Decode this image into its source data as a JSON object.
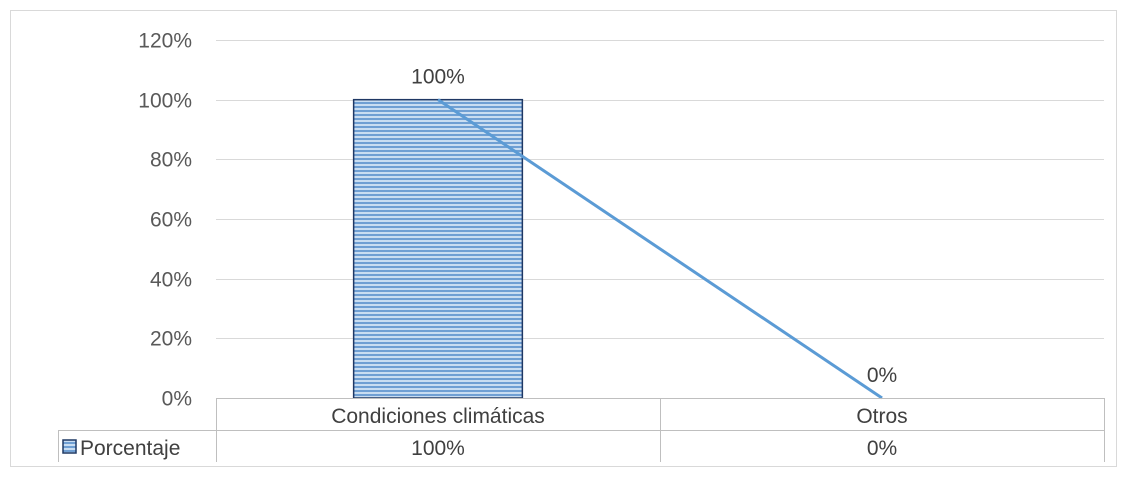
{
  "chart_data": {
    "type": "bar",
    "categories": [
      "Condiciones climáticas",
      "Otros"
    ],
    "series": [
      {
        "name": "Porcentaje",
        "values": [
          100,
          0
        ],
        "value_labels": [
          "100%",
          "0%"
        ],
        "color": "#9dc3e6",
        "border_color": "#1f3864"
      }
    ],
    "overlay_line": {
      "values": [
        100,
        0
      ],
      "color": "#5b9bd5"
    },
    "ylim": [
      0,
      120
    ],
    "yticks": [
      "0%",
      "20%",
      "40%",
      "60%",
      "80%",
      "100%",
      "120%"
    ],
    "title": "",
    "xlabel": "",
    "ylabel": "",
    "grid": true,
    "data_table": true
  }
}
